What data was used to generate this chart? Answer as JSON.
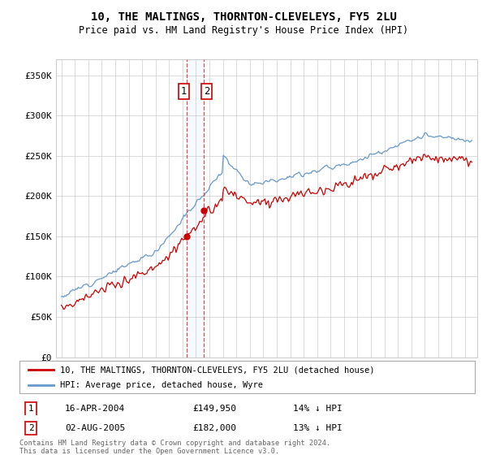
{
  "title": "10, THE MALTINGS, THORNTON-CLEVELEYS, FY5 2LU",
  "subtitle": "Price paid vs. HM Land Registry's House Price Index (HPI)",
  "legend_line1": "10, THE MALTINGS, THORNTON-CLEVELEYS, FY5 2LU (detached house)",
  "legend_line2": "HPI: Average price, detached house, Wyre",
  "annotation1": {
    "label": "1",
    "date": "16-APR-2004",
    "price": 149950,
    "note": "14% ↓ HPI"
  },
  "annotation2": {
    "label": "2",
    "date": "02-AUG-2005",
    "price": 182000,
    "note": "13% ↓ HPI"
  },
  "footer": "Contains HM Land Registry data © Crown copyright and database right 2024.\nThis data is licensed under the Open Government Licence v3.0.",
  "ylim": [
    0,
    370000
  ],
  "yticks": [
    0,
    50000,
    100000,
    150000,
    200000,
    250000,
    300000,
    350000
  ],
  "red_line_color": "#cc0000",
  "blue_line_color": "#6699cc",
  "annotation_box_color": "#cc0000",
  "vline_color": "#dd3333",
  "background_color": "#ffffff",
  "grid_color": "#cccccc",
  "sale1_year": 2004.292,
  "sale2_year": 2005.583,
  "sale1_price": 149950,
  "sale2_price": 182000
}
